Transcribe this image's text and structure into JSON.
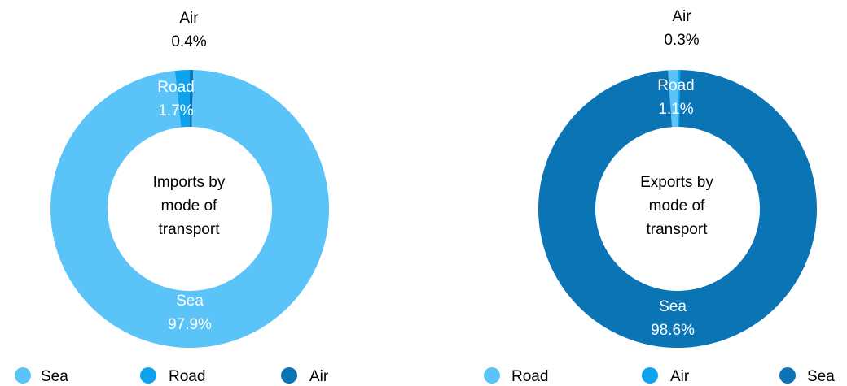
{
  "chart_data": [
    {
      "type": "pie",
      "title": "Imports by mode of transport",
      "title_lines": [
        "Imports by",
        "mode of",
        "transport"
      ],
      "series": [
        {
          "name": "Sea",
          "value": 97.9,
          "label": "97.9%",
          "color": "#5ac3f8"
        },
        {
          "name": "Road",
          "value": 1.7,
          "label": "1.7%",
          "color": "#0fa3ef"
        },
        {
          "name": "Air",
          "value": 0.4,
          "label": "0.4%",
          "color": "#0b74b5"
        }
      ],
      "legend": [
        "Sea",
        "Road",
        "Air"
      ],
      "legend_placement": "bottom"
    },
    {
      "type": "pie",
      "title": "Exports by mode of transport",
      "title_lines": [
        "Exports by",
        "mode of",
        "transport"
      ],
      "series": [
        {
          "name": "Road",
          "value": 1.1,
          "label": "1.1%",
          "color": "#5ac3f8"
        },
        {
          "name": "Air",
          "value": 0.3,
          "label": "0.3%",
          "color": "#0fa3ef"
        },
        {
          "name": "Sea",
          "value": 98.6,
          "label": "98.6%",
          "color": "#0b74b5"
        }
      ],
      "legend": [
        "Road",
        "Air",
        "Sea"
      ],
      "legend_placement": "bottom"
    }
  ]
}
